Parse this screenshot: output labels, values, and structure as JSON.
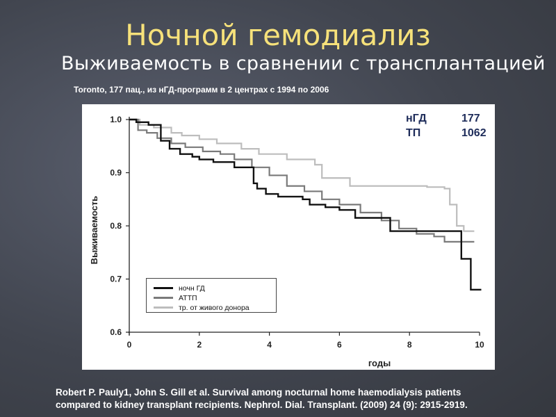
{
  "slide": {
    "title": "Ночной гемодиализ",
    "subtitle": "Выживаемость в сравнении с трансплантацией",
    "study_note": "Toronto, 177 пац., из нГД-программ  в 2 центрах с 1994  по 2006",
    "citation_line1": "Robert P. Pauly1, John S. Gill et al. Survival among nocturnal home haemodialysis patients",
    "citation_line2": "compared to kidney transplant recipients. Nephrol. Dial. Transplant.  (2009)   24  (9):  2915-2919."
  },
  "counts": [
    {
      "label": "нГД",
      "value": "177"
    },
    {
      "label": "ТП",
      "value": "1062"
    }
  ],
  "chart_data": {
    "type": "line",
    "title": "",
    "xlabel": "годы",
    "ylabel": "Выживаемость",
    "xlim": [
      0,
      10
    ],
    "ylim": [
      0.6,
      1.0
    ],
    "x_ticks": [
      "0",
      "2",
      "4",
      "6",
      "8",
      "10"
    ],
    "y_ticks": [
      "0.6",
      "0.7",
      "0.8",
      "0.9",
      "1.0"
    ],
    "grid": false,
    "legend_position": "bottom-left",
    "series": [
      {
        "name": "ночн ГД",
        "color": "#111111",
        "x": [
          0,
          0.2,
          0.55,
          0.9,
          1.15,
          1.45,
          1.8,
          2.0,
          2.4,
          2.6,
          3.0,
          3.55,
          3.65,
          3.9,
          4.05,
          4.25,
          4.55,
          4.95,
          5.15,
          5.6,
          6.0,
          6.45,
          7.2,
          7.45,
          9.4,
          9.48,
          9.75,
          10.05
        ],
        "y": [
          1.0,
          0.995,
          0.99,
          0.96,
          0.945,
          0.935,
          0.93,
          0.925,
          0.92,
          0.92,
          0.91,
          0.88,
          0.87,
          0.86,
          0.86,
          0.855,
          0.855,
          0.85,
          0.84,
          0.835,
          0.83,
          0.815,
          0.815,
          0.79,
          0.79,
          0.738,
          0.68,
          0.68
        ]
      },
      {
        "name": "АТТП",
        "color": "#7a7a7a",
        "x": [
          0,
          0.25,
          0.5,
          0.8,
          1.2,
          1.6,
          2.1,
          2.6,
          3.0,
          3.5,
          4.0,
          4.5,
          5.0,
          5.5,
          6.0,
          6.6,
          7.2,
          7.7,
          8.2,
          8.7,
          9.0,
          9.5,
          9.85
        ],
        "y": [
          1.0,
          0.98,
          0.975,
          0.965,
          0.955,
          0.948,
          0.94,
          0.935,
          0.925,
          0.91,
          0.895,
          0.875,
          0.865,
          0.85,
          0.84,
          0.825,
          0.81,
          0.795,
          0.785,
          0.78,
          0.77,
          0.77,
          0.77
        ]
      },
      {
        "name": "тр. от живого донора",
        "color": "#bdbdbd",
        "x": [
          0,
          0.3,
          0.7,
          1.2,
          1.5,
          2.0,
          2.5,
          3.2,
          3.7,
          4.5,
          5.3,
          5.5,
          6.3,
          7.0,
          8.0,
          8.5,
          9.0,
          9.15,
          9.35,
          9.55,
          9.85
        ],
        "y": [
          1.0,
          0.99,
          0.985,
          0.975,
          0.97,
          0.963,
          0.955,
          0.945,
          0.935,
          0.925,
          0.915,
          0.89,
          0.875,
          0.875,
          0.875,
          0.873,
          0.87,
          0.84,
          0.8,
          0.79,
          0.79
        ]
      }
    ]
  }
}
